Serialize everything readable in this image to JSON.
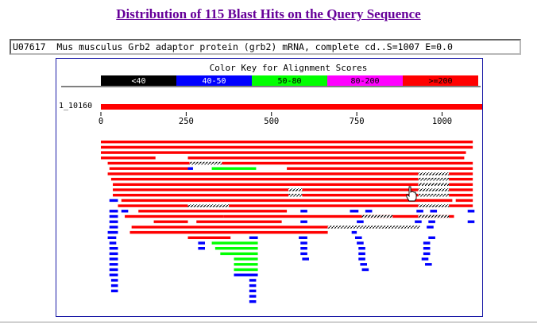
{
  "page": {
    "title": "Distribution of 115 Blast Hits on the Query Sequence",
    "hit_line": "U07617  Mus musculus Grb2 adaptor protein (grb2) mRNA, complete cd..S=1007 E=0.0"
  },
  "color_key": {
    "title": "Color Key for Alignment Scores",
    "ranges": [
      {
        "label": "<40",
        "color": "#000000",
        "text_color": "#ffffff"
      },
      {
        "label": "40-50",
        "color": "#0000ff",
        "text_color": "#ffffff"
      },
      {
        "label": "50-80",
        "color": "#00ff00",
        "text_color": "#000000"
      },
      {
        "label": "80-200",
        "color": "#ff00ff",
        "text_color": "#000000"
      },
      {
        "label": ">=200",
        "color": "#ff0000",
        "text_color": "#000000"
      }
    ]
  },
  "query": {
    "label": "1_10160",
    "length": 1120,
    "color": "#ff0000"
  },
  "axis": {
    "ticks": [
      0,
      250,
      500,
      750,
      1000
    ]
  },
  "chart_data": {
    "type": "bar",
    "description_units": "query sequence positions",
    "x_range": [
      0,
      1120
    ],
    "hits": [
      {
        "row": 0,
        "start": 0,
        "end": 1090,
        "color": "#ff0000"
      },
      {
        "row": 1,
        "start": 0,
        "end": 1090,
        "color": "#ff0000"
      },
      {
        "row": 2,
        "start": 0,
        "end": 1070,
        "color": "#ff0000"
      },
      {
        "row": 3,
        "start": 0,
        "end": 160,
        "color": "#ff0000"
      },
      {
        "row": 3,
        "start": 255,
        "end": 1065,
        "color": "#ff0000"
      },
      {
        "row": 4,
        "start": 20,
        "end": 260,
        "color": "#ff0000"
      },
      {
        "row": 4,
        "start": 260,
        "end": 355,
        "color": "#000000",
        "hatched": true
      },
      {
        "row": 4,
        "start": 355,
        "end": 1090,
        "color": "#ff0000"
      },
      {
        "row": 5,
        "start": 25,
        "end": 255,
        "color": "#ff0000"
      },
      {
        "row": 5,
        "start": 255,
        "end": 270,
        "color": "#0000ff"
      },
      {
        "row": 5,
        "start": 325,
        "end": 455,
        "color": "#00ff00"
      },
      {
        "row": 5,
        "start": 545,
        "end": 1090,
        "color": "#ff0000"
      },
      {
        "row": 6,
        "start": 20,
        "end": 930,
        "color": "#ff0000"
      },
      {
        "row": 6,
        "start": 930,
        "end": 1020,
        "color": "#000000",
        "hatched": true
      },
      {
        "row": 6,
        "start": 1020,
        "end": 1090,
        "color": "#ff0000"
      },
      {
        "row": 7,
        "start": 30,
        "end": 930,
        "color": "#ff0000"
      },
      {
        "row": 7,
        "start": 930,
        "end": 1020,
        "color": "#000000",
        "hatched": true
      },
      {
        "row": 7,
        "start": 1020,
        "end": 1090,
        "color": "#ff0000"
      },
      {
        "row": 8,
        "start": 35,
        "end": 930,
        "color": "#ff0000"
      },
      {
        "row": 8,
        "start": 930,
        "end": 1020,
        "color": "#000000",
        "hatched": true
      },
      {
        "row": 8,
        "start": 1020,
        "end": 1090,
        "color": "#ff0000"
      },
      {
        "row": 9,
        "start": 35,
        "end": 550,
        "color": "#ff0000"
      },
      {
        "row": 9,
        "start": 550,
        "end": 590,
        "color": "#000000",
        "hatched": true
      },
      {
        "row": 9,
        "start": 590,
        "end": 930,
        "color": "#ff0000"
      },
      {
        "row": 9,
        "start": 930,
        "end": 1020,
        "color": "#000000",
        "hatched": true
      },
      {
        "row": 9,
        "start": 1020,
        "end": 1090,
        "color": "#ff0000"
      },
      {
        "row": 10,
        "start": 35,
        "end": 550,
        "color": "#ff0000"
      },
      {
        "row": 10,
        "start": 550,
        "end": 590,
        "color": "#000000",
        "hatched": true
      },
      {
        "row": 10,
        "start": 590,
        "end": 930,
        "color": "#ff0000"
      },
      {
        "row": 10,
        "start": 930,
        "end": 1020,
        "color": "#000000",
        "hatched": true
      },
      {
        "row": 10,
        "start": 1020,
        "end": 1090,
        "color": "#ff0000"
      },
      {
        "row": 11,
        "start": 25,
        "end": 50,
        "color": "#0000ff"
      },
      {
        "row": 11,
        "start": 60,
        "end": 1030,
        "color": "#ff0000"
      },
      {
        "row": 11,
        "start": 1040,
        "end": 1090,
        "color": "#ff0000"
      },
      {
        "row": 12,
        "start": 50,
        "end": 255,
        "color": "#ff0000"
      },
      {
        "row": 12,
        "start": 255,
        "end": 375,
        "color": "#000000",
        "hatched": true
      },
      {
        "row": 12,
        "start": 375,
        "end": 930,
        "color": "#ff0000"
      },
      {
        "row": 12,
        "start": 930,
        "end": 1020,
        "color": "#000000",
        "hatched": true
      },
      {
        "row": 12,
        "start": 1020,
        "end": 1090,
        "color": "#ff0000"
      },
      {
        "row": 13,
        "start": 25,
        "end": 50,
        "color": "#0000ff"
      },
      {
        "row": 13,
        "start": 60,
        "end": 80,
        "color": "#0000ff"
      },
      {
        "row": 13,
        "start": 110,
        "end": 545,
        "color": "#ff0000"
      },
      {
        "row": 13,
        "start": 585,
        "end": 605,
        "color": "#0000ff"
      },
      {
        "row": 13,
        "start": 730,
        "end": 755,
        "color": "#0000ff"
      },
      {
        "row": 13,
        "start": 775,
        "end": 795,
        "color": "#0000ff"
      },
      {
        "row": 13,
        "start": 925,
        "end": 945,
        "color": "#0000ff"
      },
      {
        "row": 13,
        "start": 965,
        "end": 985,
        "color": "#0000ff"
      },
      {
        "row": 13,
        "start": 1075,
        "end": 1095,
        "color": "#0000ff"
      },
      {
        "row": 14,
        "start": 25,
        "end": 50,
        "color": "#0000ff"
      },
      {
        "row": 14,
        "start": 70,
        "end": 360,
        "color": "#ff0000"
      },
      {
        "row": 14,
        "start": 360,
        "end": 1035,
        "color": "#ff0000"
      },
      {
        "row": 14,
        "start": 765,
        "end": 855,
        "color": "#000000",
        "hatched": true
      },
      {
        "row": 14,
        "start": 930,
        "end": 1020,
        "color": "#000000",
        "hatched": true
      },
      {
        "row": 15,
        "start": 25,
        "end": 50,
        "color": "#0000ff"
      },
      {
        "row": 15,
        "start": 155,
        "end": 255,
        "color": "#ff0000"
      },
      {
        "row": 15,
        "start": 280,
        "end": 530,
        "color": "#ff0000"
      },
      {
        "row": 15,
        "start": 585,
        "end": 605,
        "color": "#0000ff"
      },
      {
        "row": 15,
        "start": 750,
        "end": 770,
        "color": "#0000ff"
      },
      {
        "row": 15,
        "start": 920,
        "end": 940,
        "color": "#0000ff"
      },
      {
        "row": 15,
        "start": 960,
        "end": 980,
        "color": "#0000ff"
      },
      {
        "row": 15,
        "start": 1075,
        "end": 1095,
        "color": "#0000ff"
      },
      {
        "row": 16,
        "start": 25,
        "end": 50,
        "color": "#0000ff"
      },
      {
        "row": 16,
        "start": 90,
        "end": 665,
        "color": "#ff0000"
      },
      {
        "row": 16,
        "start": 665,
        "end": 935,
        "color": "#000000",
        "hatched": true
      },
      {
        "row": 16,
        "start": 955,
        "end": 975,
        "color": "#0000ff"
      },
      {
        "row": 17,
        "start": 20,
        "end": 50,
        "color": "#0000ff"
      },
      {
        "row": 17,
        "start": 85,
        "end": 665,
        "color": "#ff0000"
      },
      {
        "row": 17,
        "start": 735,
        "end": 750,
        "color": "#0000ff"
      },
      {
        "row": 18,
        "start": 20,
        "end": 45,
        "color": "#0000ff"
      },
      {
        "row": 18,
        "start": 255,
        "end": 380,
        "color": "#ff0000"
      },
      {
        "row": 18,
        "start": 435,
        "end": 460,
        "color": "#0000ff"
      },
      {
        "row": 18,
        "start": 580,
        "end": 605,
        "color": "#0000ff"
      },
      {
        "row": 18,
        "start": 745,
        "end": 765,
        "color": "#0000ff"
      },
      {
        "row": 18,
        "start": 960,
        "end": 980,
        "color": "#0000ff"
      },
      {
        "row": 19,
        "start": 25,
        "end": 45,
        "color": "#0000ff"
      },
      {
        "row": 19,
        "start": 285,
        "end": 305,
        "color": "#0000ff"
      },
      {
        "row": 19,
        "start": 325,
        "end": 460,
        "color": "#00ff00"
      },
      {
        "row": 19,
        "start": 585,
        "end": 605,
        "color": "#0000ff"
      },
      {
        "row": 19,
        "start": 750,
        "end": 770,
        "color": "#0000ff"
      },
      {
        "row": 19,
        "start": 945,
        "end": 965,
        "color": "#0000ff"
      },
      {
        "row": 20,
        "start": 25,
        "end": 50,
        "color": "#0000ff"
      },
      {
        "row": 20,
        "start": 285,
        "end": 305,
        "color": "#0000ff"
      },
      {
        "row": 20,
        "start": 335,
        "end": 460,
        "color": "#00ff00"
      },
      {
        "row": 20,
        "start": 585,
        "end": 605,
        "color": "#0000ff"
      },
      {
        "row": 20,
        "start": 755,
        "end": 775,
        "color": "#0000ff"
      },
      {
        "row": 20,
        "start": 945,
        "end": 965,
        "color": "#0000ff"
      },
      {
        "row": 21,
        "start": 25,
        "end": 50,
        "color": "#0000ff"
      },
      {
        "row": 21,
        "start": 350,
        "end": 460,
        "color": "#00ff00"
      },
      {
        "row": 21,
        "start": 585,
        "end": 605,
        "color": "#0000ff"
      },
      {
        "row": 21,
        "start": 755,
        "end": 775,
        "color": "#0000ff"
      },
      {
        "row": 21,
        "start": 945,
        "end": 965,
        "color": "#0000ff"
      },
      {
        "row": 22,
        "start": 25,
        "end": 50,
        "color": "#0000ff"
      },
      {
        "row": 22,
        "start": 390,
        "end": 460,
        "color": "#00ff00"
      },
      {
        "row": 22,
        "start": 590,
        "end": 610,
        "color": "#0000ff"
      },
      {
        "row": 22,
        "start": 755,
        "end": 775,
        "color": "#0000ff"
      },
      {
        "row": 22,
        "start": 940,
        "end": 960,
        "color": "#0000ff"
      },
      {
        "row": 23,
        "start": 25,
        "end": 50,
        "color": "#0000ff"
      },
      {
        "row": 23,
        "start": 390,
        "end": 460,
        "color": "#00ff00"
      },
      {
        "row": 23,
        "start": 760,
        "end": 780,
        "color": "#0000ff"
      },
      {
        "row": 23,
        "start": 950,
        "end": 970,
        "color": "#0000ff"
      },
      {
        "row": 24,
        "start": 25,
        "end": 50,
        "color": "#0000ff"
      },
      {
        "row": 24,
        "start": 390,
        "end": 460,
        "color": "#00ff00"
      },
      {
        "row": 24,
        "start": 765,
        "end": 785,
        "color": "#0000ff"
      },
      {
        "row": 25,
        "start": 25,
        "end": 50,
        "color": "#0000ff"
      },
      {
        "row": 25,
        "start": 390,
        "end": 460,
        "color": "#0000ff"
      },
      {
        "row": 26,
        "start": 30,
        "end": 50,
        "color": "#0000ff"
      },
      {
        "row": 26,
        "start": 435,
        "end": 455,
        "color": "#0000ff"
      },
      {
        "row": 27,
        "start": 30,
        "end": 50,
        "color": "#0000ff"
      },
      {
        "row": 27,
        "start": 435,
        "end": 455,
        "color": "#0000ff"
      },
      {
        "row": 28,
        "start": 30,
        "end": 50,
        "color": "#0000ff"
      },
      {
        "row": 28,
        "start": 435,
        "end": 455,
        "color": "#0000ff"
      },
      {
        "row": 29,
        "start": 435,
        "end": 455,
        "color": "#0000ff"
      },
      {
        "row": 30,
        "start": 435,
        "end": 455,
        "color": "#0000ff"
      }
    ]
  }
}
